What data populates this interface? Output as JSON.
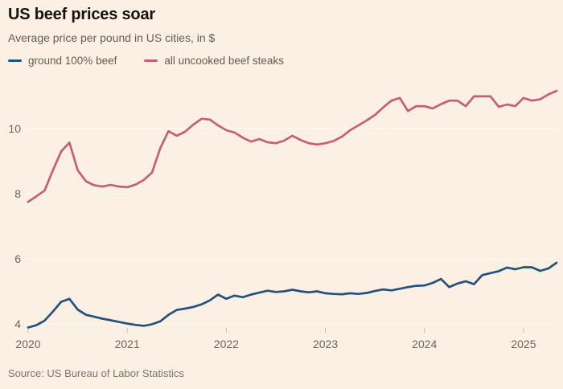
{
  "header": {
    "title": "US beef prices soar",
    "subtitle": "Average price per pound in US cities, in $"
  },
  "legend": [
    {
      "label": "ground 100% beef",
      "color": "#25517a"
    },
    {
      "label": "all uncooked beef steaks",
      "color": "#c5607293"
    }
  ],
  "footer": {
    "source": "Source: US Bureau of Labor Statistics"
  },
  "colors": {
    "background": "#fcefe3",
    "ground_beef_line": "#25517a",
    "steaks_line": "#c56072",
    "axis_text": "#6e655c",
    "gridline": "#ffffff"
  },
  "chart_data": {
    "type": "line",
    "title": "US beef prices soar",
    "subtitle": "Average price per pound in US cities, in $",
    "source": "Source: US Bureau of Labor Statistics",
    "x_unit": "month",
    "x_range": [
      "2020-01",
      "2025-05"
    ],
    "x_tick_labels": [
      "2020",
      "2021",
      "2022",
      "2023",
      "2024",
      "2025"
    ],
    "x_tick_month_indexes": [
      0,
      12,
      24,
      36,
      48,
      60
    ],
    "y_ticks": [
      4,
      6,
      8,
      10
    ],
    "ylim": [
      3.6,
      11.6
    ],
    "grid": "horizontal-faint",
    "legend_position": "top-left",
    "series": [
      {
        "name": "ground 100% beef",
        "color": "#25517a",
        "values": [
          3.89,
          3.96,
          4.1,
          4.38,
          4.68,
          4.77,
          4.44,
          4.28,
          4.22,
          4.16,
          4.11,
          4.06,
          4.01,
          3.97,
          3.94,
          3.99,
          4.08,
          4.28,
          4.43,
          4.47,
          4.52,
          4.6,
          4.72,
          4.9,
          4.77,
          4.87,
          4.82,
          4.9,
          4.96,
          5.02,
          4.98,
          5.0,
          5.05,
          5.0,
          4.97,
          5.0,
          4.94,
          4.92,
          4.91,
          4.94,
          4.92,
          4.95,
          5.01,
          5.06,
          5.03,
          5.08,
          5.13,
          5.17,
          5.18,
          5.26,
          5.38,
          5.13,
          5.24,
          5.31,
          5.22,
          5.5,
          5.56,
          5.62,
          5.73,
          5.68,
          5.74,
          5.74,
          5.63,
          5.7,
          5.88
        ]
      },
      {
        "name": "all uncooked beef steaks",
        "color": "#c56072",
        "values": [
          7.75,
          7.92,
          8.1,
          8.72,
          9.3,
          9.57,
          8.72,
          8.38,
          8.26,
          8.22,
          8.27,
          8.22,
          8.2,
          8.28,
          8.42,
          8.65,
          9.4,
          9.92,
          9.78,
          9.9,
          10.12,
          10.3,
          10.28,
          10.1,
          9.95,
          9.88,
          9.72,
          9.6,
          9.68,
          9.58,
          9.55,
          9.63,
          9.78,
          9.65,
          9.55,
          9.51,
          9.55,
          9.62,
          9.75,
          9.95,
          10.1,
          10.25,
          10.42,
          10.65,
          10.86,
          10.94,
          10.54,
          10.69,
          10.69,
          10.62,
          10.75,
          10.86,
          10.86,
          10.69,
          10.99,
          10.99,
          10.99,
          10.67,
          10.74,
          10.69,
          10.94,
          10.86,
          10.9,
          11.05,
          11.16
        ]
      }
    ]
  }
}
